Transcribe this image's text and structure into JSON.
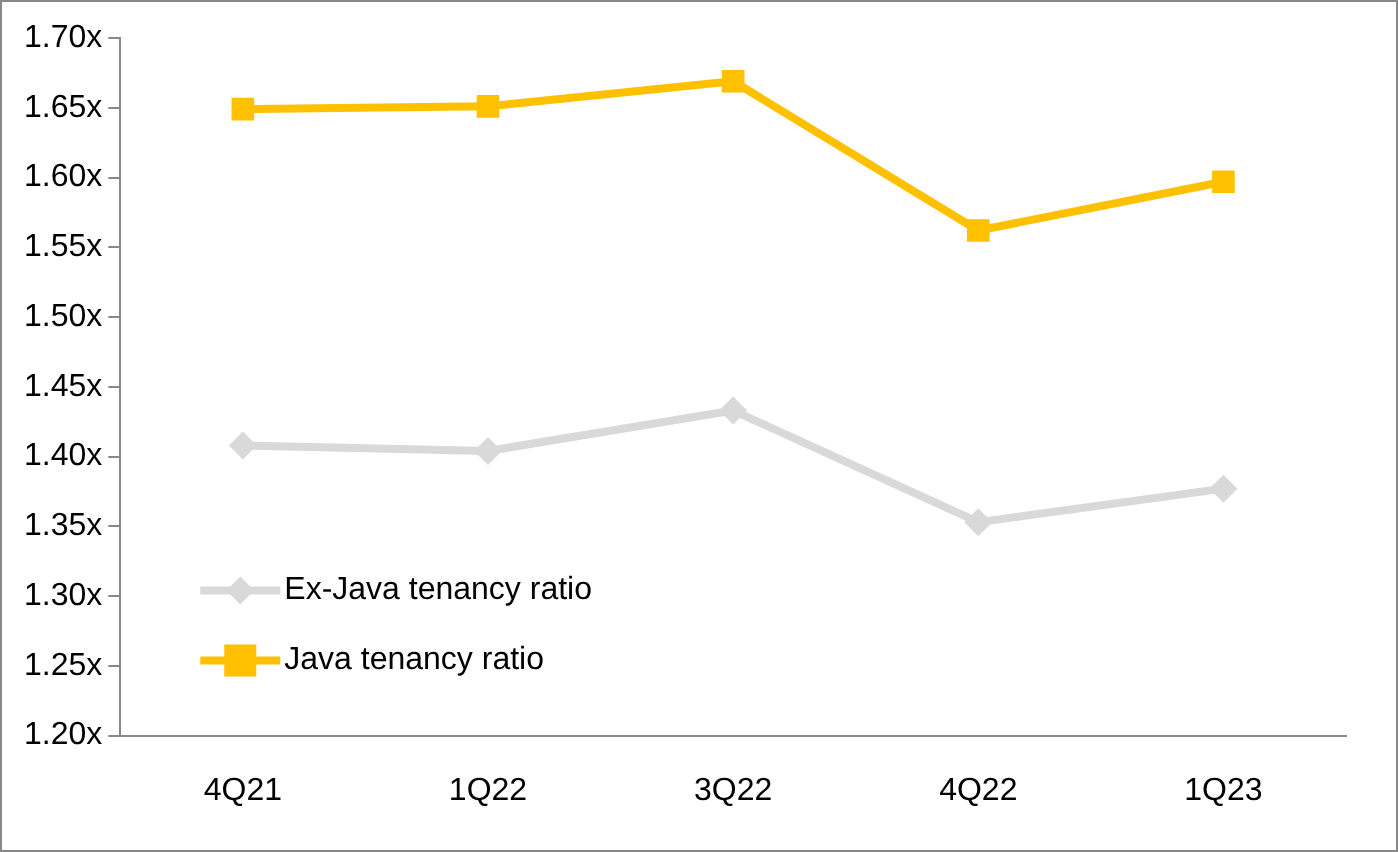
{
  "chart_data": {
    "type": "line",
    "categories": [
      "4Q21",
      "1Q22",
      "3Q22",
      "4Q22",
      "1Q23"
    ],
    "series": [
      {
        "name": "Ex-Java tenancy ratio",
        "color": "#d9d9d9",
        "marker": "diamond",
        "values": [
          1.408,
          1.404,
          1.433,
          1.353,
          1.377
        ]
      },
      {
        "name": "Java tenancy ratio",
        "color": "#ffc000",
        "marker": "square",
        "values": [
          1.649,
          1.651,
          1.669,
          1.562,
          1.597
        ]
      }
    ],
    "ylim": [
      1.2,
      1.7
    ],
    "yticks": [
      {
        "value": 1.2,
        "label": "1.20x"
      },
      {
        "value": 1.25,
        "label": "1.25x"
      },
      {
        "value": 1.3,
        "label": "1.30x"
      },
      {
        "value": 1.35,
        "label": "1.35x"
      },
      {
        "value": 1.4,
        "label": "1.40x"
      },
      {
        "value": 1.45,
        "label": "1.45x"
      },
      {
        "value": 1.5,
        "label": "1.50x"
      },
      {
        "value": 1.55,
        "label": "1.55x"
      },
      {
        "value": 1.6,
        "label": "1.60x"
      },
      {
        "value": 1.65,
        "label": "1.65x"
      },
      {
        "value": 1.7,
        "label": "1.70x"
      }
    ],
    "grid": false,
    "legend": "bottom left"
  }
}
